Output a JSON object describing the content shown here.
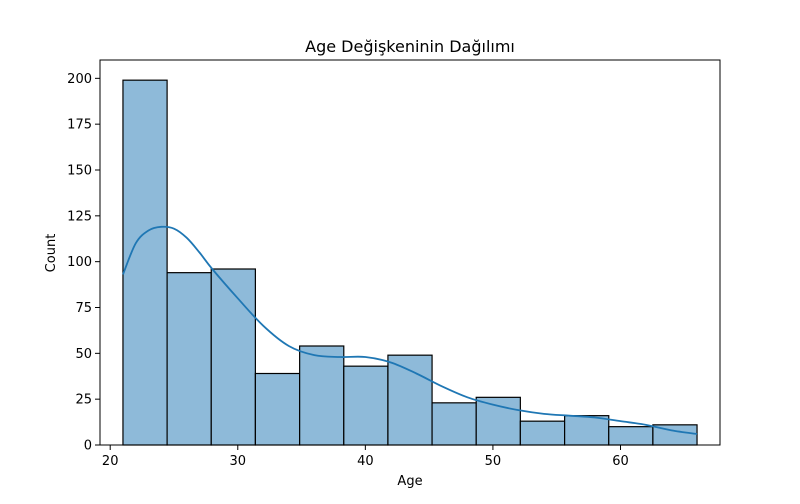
{
  "chart_data": {
    "type": "bar",
    "title": "Age Değişkeninin Dağılımı",
    "xlabel": "Age",
    "ylabel": "Count",
    "xlim": [
      19.2,
      67.8
    ],
    "ylim": [
      0,
      210
    ],
    "xticks": [
      20,
      30,
      40,
      50,
      60
    ],
    "yticks": [
      0,
      25,
      50,
      75,
      100,
      125,
      150,
      175,
      200
    ],
    "bins": [
      {
        "start": 21.0,
        "end": 24.46,
        "count": 199
      },
      {
        "start": 24.46,
        "end": 27.92,
        "count": 94
      },
      {
        "start": 27.92,
        "end": 31.38,
        "count": 96
      },
      {
        "start": 31.38,
        "end": 34.85,
        "count": 39
      },
      {
        "start": 34.85,
        "end": 38.31,
        "count": 54
      },
      {
        "start": 38.31,
        "end": 41.77,
        "count": 43
      },
      {
        "start": 41.77,
        "end": 45.23,
        "count": 49
      },
      {
        "start": 45.23,
        "end": 48.69,
        "count": 23
      },
      {
        "start": 48.69,
        "end": 52.15,
        "count": 26
      },
      {
        "start": 52.15,
        "end": 55.62,
        "count": 13
      },
      {
        "start": 55.62,
        "end": 59.08,
        "count": 16
      },
      {
        "start": 59.08,
        "end": 62.54,
        "count": 10
      },
      {
        "start": 62.54,
        "end": 66.0,
        "count": 11
      }
    ],
    "kde": {
      "x": [
        21,
        22,
        23,
        24,
        25,
        26,
        27,
        28,
        30,
        32,
        34,
        36,
        38,
        40,
        42,
        44,
        46,
        48,
        50,
        52,
        54,
        56,
        58,
        60,
        62,
        64,
        66
      ],
      "y": [
        93,
        110,
        117,
        119,
        118,
        113,
        105,
        96,
        80,
        65,
        54,
        49,
        48,
        48,
        45,
        39,
        32,
        26,
        22,
        19,
        17,
        16,
        15,
        13,
        11,
        8,
        6
      ]
    },
    "colors": {
      "bar_fill": "#8ebad9",
      "bar_edge": "#000000",
      "kde_line": "#1f77b4"
    },
    "legend": "none",
    "grid": false
  }
}
